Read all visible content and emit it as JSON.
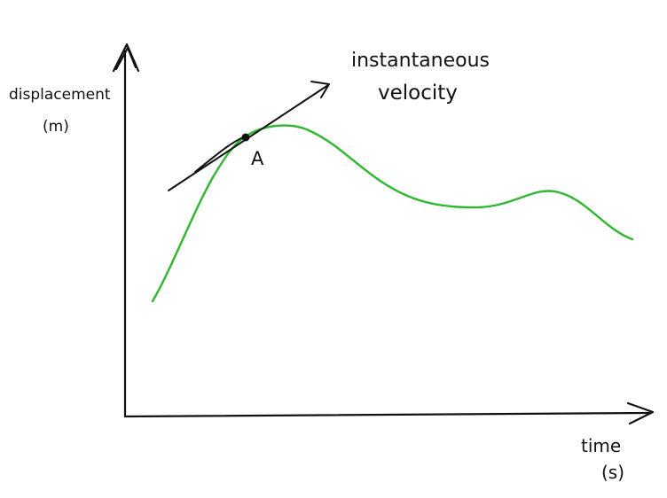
{
  "labels": {
    "y_axis": "displacement",
    "y_unit": "(m)",
    "x_axis": "time",
    "x_unit": "(s)",
    "tangent_line1": "instantaneous",
    "tangent_line2": "velocity",
    "point": "A"
  },
  "colors": {
    "curve": "#2eb82e",
    "ink": "#111111",
    "background": "#ffffff"
  }
}
